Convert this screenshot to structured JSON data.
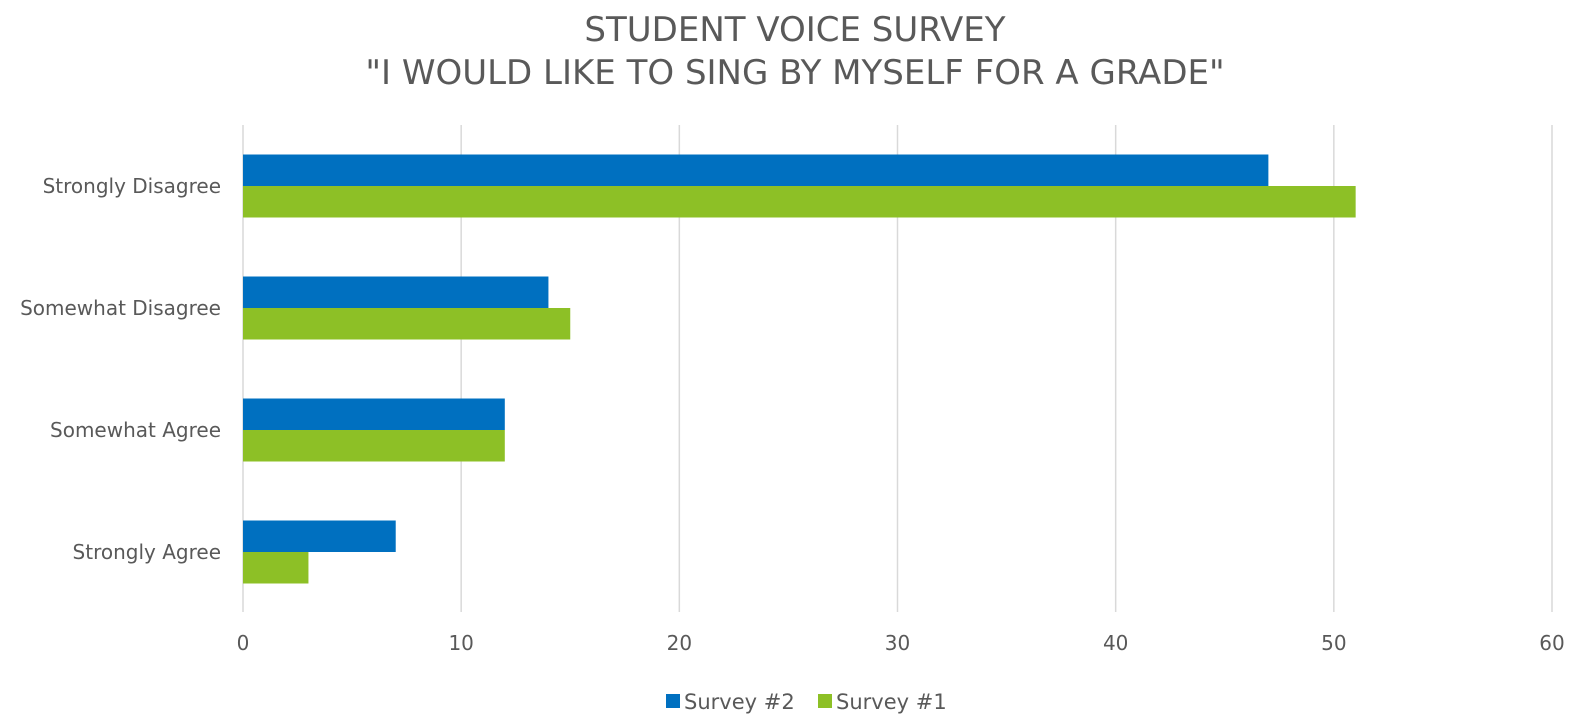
{
  "chart_data": {
    "type": "bar",
    "orientation": "horizontal",
    "title": [
      "STUDENT VOICE SURVEY",
      "\"I WOULD LIKE TO SING BY  MYSELF FOR A GRADE\""
    ],
    "categories": [
      "Strongly Disagree",
      "Somewhat Disagree",
      "Somewhat Agree",
      "Strongly Agree"
    ],
    "series": [
      {
        "name": "Survey #2",
        "color": "#0070C0",
        "values": [
          47,
          14,
          12,
          7
        ]
      },
      {
        "name": "Survey #1",
        "color": "#8DC026",
        "values": [
          51,
          15,
          12,
          3
        ]
      }
    ],
    "xlim": [
      0,
      60
    ],
    "xticks": [
      0,
      10,
      20,
      30,
      40,
      50,
      60
    ],
    "grid": "vertical",
    "legend": "bottom"
  }
}
